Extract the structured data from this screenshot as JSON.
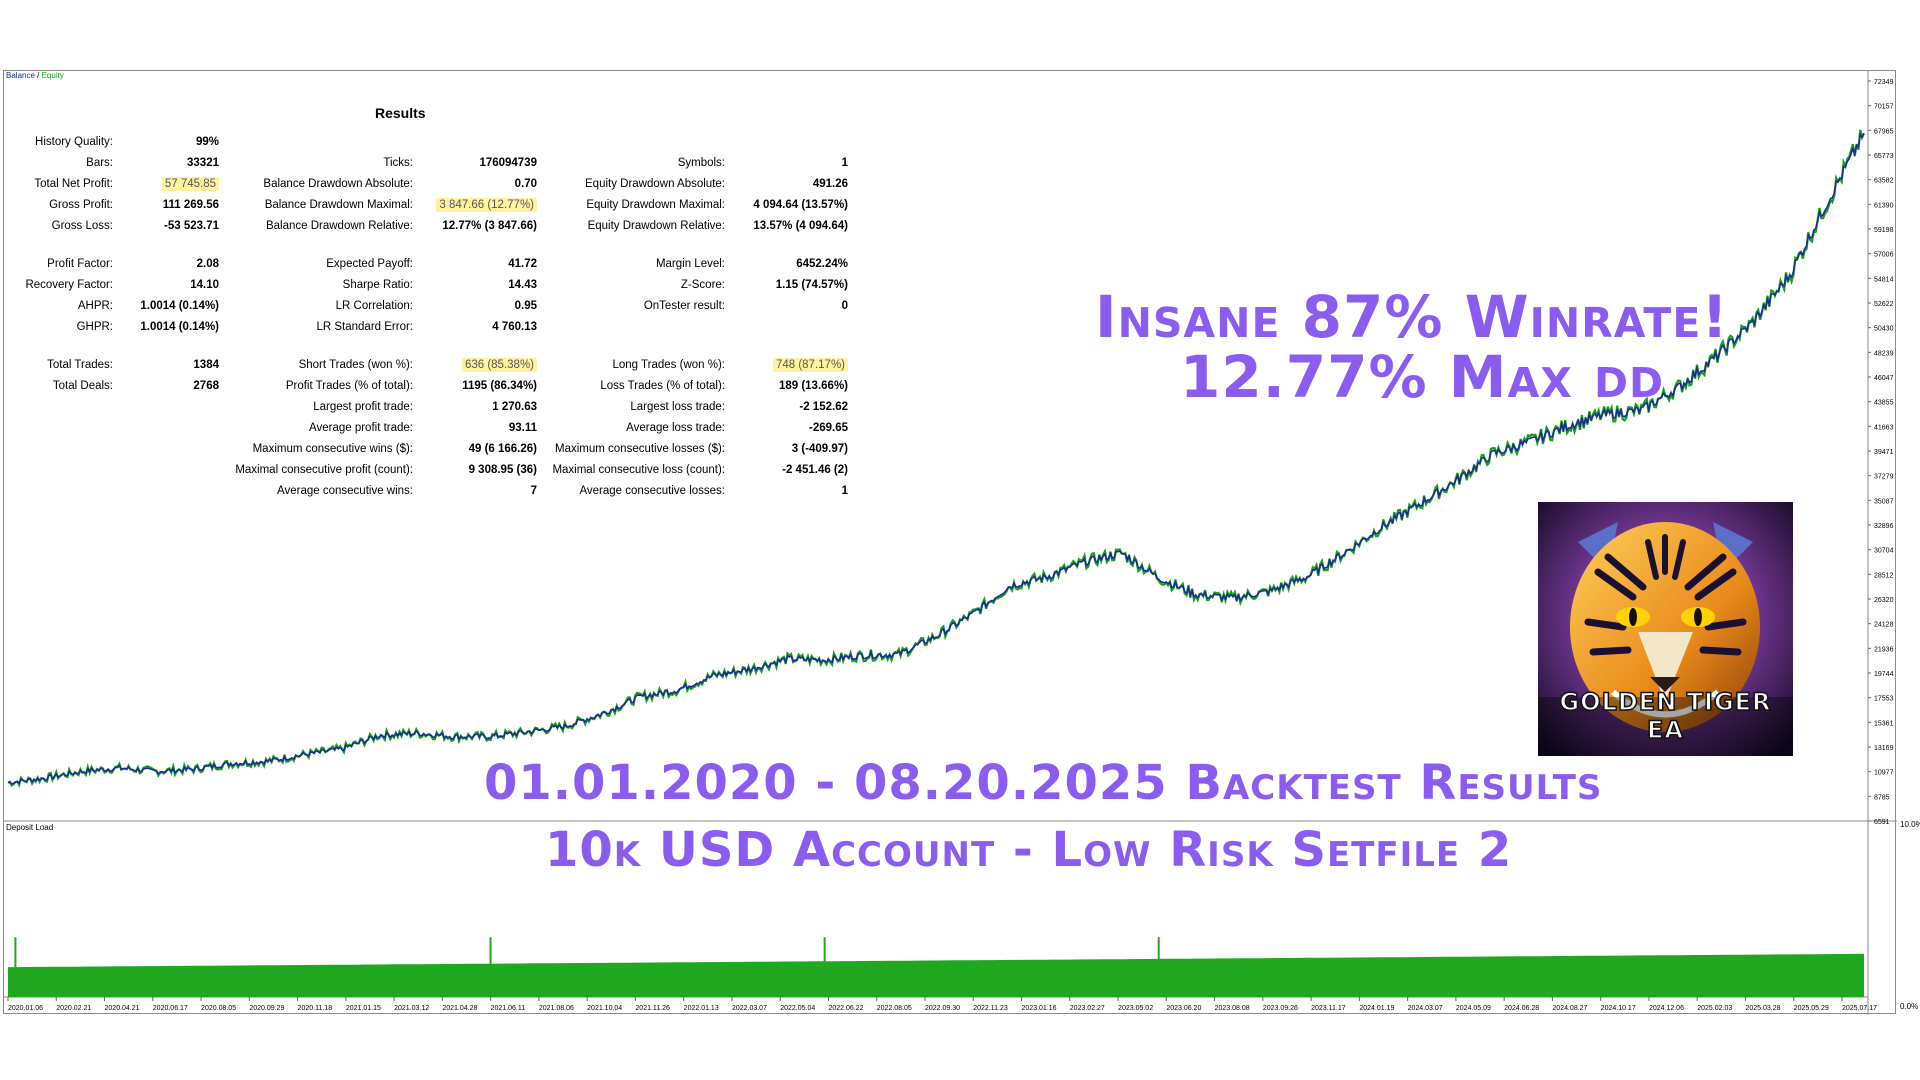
{
  "legend": {
    "balance": "Balance",
    "sep": " / ",
    "equity": "Equity"
  },
  "deposit_load_label": "Deposit Load",
  "deposit_pct_top": "10.0%",
  "deposit_pct_bottom": "0.0%",
  "results": {
    "title": "Results",
    "rows": [
      {
        "l1": "History Quality:",
        "v1": "99%",
        "l2": "",
        "v2": "",
        "l3": "",
        "v3": ""
      },
      {
        "l1": "Bars:",
        "v1": "33321",
        "l2": "Ticks:",
        "v2": "176094739",
        "l3": "Symbols:",
        "v3": "1"
      },
      {
        "l1": "Total Net Profit:",
        "v1": "57 745.85",
        "l2": "Balance Drawdown Absolute:",
        "v2": "0.70",
        "l3": "Equity Drawdown Absolute:",
        "v3": "491.26"
      },
      {
        "l1": "Gross Profit:",
        "v1": "111 269.56",
        "l2": "Balance Drawdown Maximal:",
        "v2": "3 847.66 (12.77%)",
        "l3": "Equity Drawdown Maximal:",
        "v3": "4 094.64 (13.57%)"
      },
      {
        "l1": "Gross Loss:",
        "v1": "-53 523.71",
        "l2": "Balance Drawdown Relative:",
        "v2": "12.77% (3 847.66)",
        "l3": "Equity Drawdown Relative:",
        "v3": "13.57% (4 094.64)"
      },
      {
        "l1": "Profit Factor:",
        "v1": "2.08",
        "l2": "Expected Payoff:",
        "v2": "41.72",
        "l3": "Margin Level:",
        "v3": "6452.24%"
      },
      {
        "l1": "Recovery Factor:",
        "v1": "14.10",
        "l2": "Sharpe Ratio:",
        "v2": "14.43",
        "l3": "Z-Score:",
        "v3": "1.15 (74.57%)"
      },
      {
        "l1": "AHPR:",
        "v1": "1.0014 (0.14%)",
        "l2": "LR Correlation:",
        "v2": "0.95",
        "l3": "OnTester result:",
        "v3": "0"
      },
      {
        "l1": "GHPR:",
        "v1": "1.0014 (0.14%)",
        "l2": "LR Standard Error:",
        "v2": "4 760.13",
        "l3": "",
        "v3": ""
      },
      {
        "l1": "Total Trades:",
        "v1": "1384",
        "l2": "Short Trades (won %):",
        "v2": "636 (85.38%)",
        "l3": "Long Trades (won %):",
        "v3": "748 (87.17%)"
      },
      {
        "l1": "Total Deals:",
        "v1": "2768",
        "l2": "Profit Trades (% of total):",
        "v2": "1195 (86.34%)",
        "l3": "Loss Trades (% of total):",
        "v3": "189 (13.66%)"
      },
      {
        "l1": "",
        "v1": "",
        "l2": "Largest profit trade:",
        "v2": "1 270.63",
        "l3": "Largest loss trade:",
        "v3": "-2 152.62"
      },
      {
        "l1": "",
        "v1": "",
        "l2": "Average profit trade:",
        "v2": "93.11",
        "l3": "Average loss trade:",
        "v3": "-269.65"
      },
      {
        "l1": "",
        "v1": "",
        "l2": "Maximum consecutive wins ($):",
        "v2": "49 (6 166.26)",
        "l3": "Maximum consecutive losses ($):",
        "v3": "3 (-409.97)"
      },
      {
        "l1": "",
        "v1": "",
        "l2": "Maximal consecutive profit (count):",
        "v2": "9 308.95 (36)",
        "l3": "Maximal consecutive loss (count):",
        "v3": "-2 451.46 (2)"
      },
      {
        "l1": "",
        "v1": "",
        "l2": "Average consecutive wins:",
        "v2": "7",
        "l3": "Average consecutive losses:",
        "v3": "1"
      }
    ]
  },
  "overlay": {
    "line1": "Insane 87% Winrate!",
    "line2": "12.77% Max dd",
    "line3": "01.01.2020 - 08.20.2025 Backtest Results",
    "line4": "10k USD Account - Low Risk Setfile 2"
  },
  "logo": {
    "text_line1": "GOLDEN TIGER",
    "text_line2": "EA"
  },
  "colors": {
    "balance": "#1a2a9c",
    "equity": "#19a019",
    "overlay_text": "#8a5cf0",
    "highlight": "#fff2a0"
  },
  "chart_data": {
    "type": "line",
    "title": "",
    "xlabel": "",
    "ylabel": "",
    "ylim": [
      6591,
      72349
    ],
    "y_ticks": [
      "72349",
      "70157",
      "67965",
      "65773",
      "63582",
      "61390",
      "59198",
      "57006",
      "54814",
      "52622",
      "50430",
      "48239",
      "46047",
      "43855",
      "41663",
      "39471",
      "37279",
      "35087",
      "32896",
      "30704",
      "28512",
      "26320",
      "24128",
      "21936",
      "19744",
      "17553",
      "15361",
      "13169",
      "10977",
      "8785",
      "6591"
    ],
    "x_ticks": [
      "2020.01.06",
      "2020.02.21",
      "2020.04.21",
      "2020.06.17",
      "2020.08.05",
      "2020.09.29",
      "2020.11.18",
      "2021.01.15",
      "2021.03.12",
      "2021.04.28",
      "2021.06.11",
      "2021.08.06",
      "2021.10.04",
      "2021.11.26",
      "2022.01.13",
      "2022.03.07",
      "2022.05.04",
      "2022.06.22",
      "2022.08.05",
      "2022.09.30",
      "2022.11.23",
      "2023.01.16",
      "2023.02.27",
      "2023.05.02",
      "2023.06.20",
      "2023.08.08",
      "2023.09.26",
      "2023.11.17",
      "2024.01.19",
      "2024.03.07",
      "2024.05.09",
      "2024.06.28",
      "2024.08.27",
      "2024.10.17",
      "2024.12.06",
      "2025.02.03",
      "2025.03.28",
      "2025.05.29",
      "2025.07.17"
    ],
    "series": [
      {
        "name": "Balance",
        "x": [
          0,
          2,
          4,
          6,
          8,
          10,
          12,
          14,
          16,
          18,
          20,
          22,
          24,
          26,
          28,
          30,
          32,
          34,
          36,
          38,
          40,
          42,
          44,
          46,
          48,
          50,
          52,
          54,
          56,
          58,
          60,
          62,
          64,
          66,
          68,
          70,
          72,
          74,
          76,
          78,
          80,
          82,
          84,
          86,
          88,
          90,
          92,
          94,
          96,
          98,
          100
        ],
        "values": [
          10000,
          10400,
          11000,
          11300,
          11000,
          11200,
          11700,
          11900,
          12500,
          13000,
          14200,
          14400,
          14100,
          14100,
          14500,
          15000,
          16100,
          17600,
          18200,
          19500,
          20100,
          21000,
          20900,
          21300,
          21400,
          23000,
          25000,
          27500,
          28300,
          29600,
          30400,
          28200,
          26700,
          26400,
          27000,
          28300,
          30400,
          32700,
          34700,
          36800,
          39200,
          40300,
          41700,
          42700,
          43100,
          45100,
          47800,
          50900,
          55100,
          61500,
          67700
        ]
      },
      {
        "name": "Equity",
        "x": [
          0,
          10,
          20,
          30,
          40,
          50,
          60,
          70,
          80,
          90,
          100
        ],
        "values": [
          9900,
          11100,
          14000,
          14900,
          19900,
          22800,
          30200,
          28100,
          39000,
          44900,
          67400
        ]
      }
    ],
    "deposit_load": {
      "ylim": [
        0,
        10.0
      ],
      "spikes_at": [
        0.4,
        26,
        44,
        62
      ],
      "base_start": 1.8,
      "base_end": 2.6
    }
  }
}
